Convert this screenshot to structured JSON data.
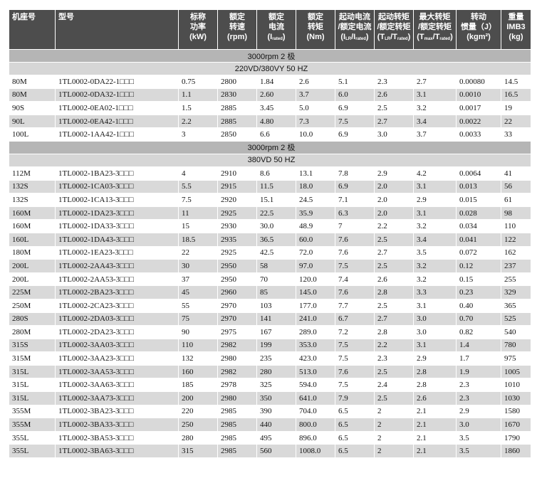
{
  "table": {
    "columns": [
      [
        [
          "机座号"
        ]
      ],
      [
        [
          "型号"
        ]
      ],
      [
        [
          "标称"
        ],
        [
          "功率"
        ],
        [
          "(kW)"
        ]
      ],
      [
        [
          "额定"
        ],
        [
          "转速"
        ],
        [
          "(rpm)"
        ]
      ],
      [
        [
          "额定"
        ],
        [
          "电流"
        ],
        [
          "(I",
          "rated",
          ")"
        ]
      ],
      [
        [
          "额定"
        ],
        [
          "转矩"
        ],
        [
          "(Nm)"
        ]
      ],
      [
        [
          "起动电流"
        ],
        [
          "/额定电流"
        ],
        [
          "(I",
          "LR",
          "/I",
          "rated",
          ")"
        ]
      ],
      [
        [
          "起动转矩"
        ],
        [
          "/额定转矩"
        ],
        [
          "(T",
          "LR",
          "/T",
          "rated",
          ")"
        ]
      ],
      [
        [
          "最大转矩"
        ],
        [
          "/额定转矩"
        ],
        [
          "(T",
          "max",
          "/T",
          "rated",
          ")"
        ]
      ],
      [
        [
          "转动"
        ],
        [
          "惯量（J）"
        ],
        [
          "(kgm²)"
        ]
      ],
      [
        [
          "重量"
        ],
        [
          "IMB3"
        ],
        [
          "(kg)"
        ]
      ]
    ],
    "sections": [
      {
        "titles": [
          "3000rpm 2 极",
          "220VD/380VY  50 HZ"
        ],
        "rows": [
          [
            "80M",
            "1TL0002-0DA22-1□□□",
            "0.75",
            "2800",
            "1.84",
            "2.6",
            "5.1",
            "2.3",
            "2.7",
            "0.00080",
            "14.5"
          ],
          [
            "80M",
            "1TL0002-0DA32-1□□□",
            "1.1",
            "2830",
            "2.60",
            "3.7",
            "6.0",
            "2.6",
            "3.1",
            "0.0010",
            "16.5"
          ],
          [
            "90S",
            "1TL0002-0EA02-1□□□",
            "1.5",
            "2885",
            "3.45",
            "5.0",
            "6.9",
            "2.5",
            "3.2",
            "0.0017",
            "19"
          ],
          [
            "90L",
            "1TL0002-0EA42-1□□□",
            "2.2",
            "2885",
            "4.80",
            "7.3",
            "7.5",
            "2.7",
            "3.4",
            "0.0022",
            "22"
          ],
          [
            "100L",
            "1TL0002-1AA42-1□□□",
            "3",
            "2850",
            "6.6",
            "10.0",
            "6.9",
            "3.0",
            "3.7",
            "0.0033",
            "33"
          ]
        ]
      },
      {
        "titles": [
          "3000rpm 2 极",
          "380VD  50 HZ"
        ],
        "rows": [
          [
            "112M",
            "1TL0002-1BA23-3□□□",
            "4",
            "2910",
            "8.6",
            "13.1",
            "7.8",
            "2.9",
            "4.2",
            "0.0064",
            "41"
          ],
          [
            "132S",
            "1TL0002-1CA03-3□□□",
            "5.5",
            "2915",
            "11.5",
            "18.0",
            "6.9",
            "2.0",
            "3.1",
            "0.013",
            "56"
          ],
          [
            "132S",
            "1TL0002-1CA13-3□□□",
            "7.5",
            "2920",
            "15.1",
            "24.5",
            "7.1",
            "2.0",
            "2.9",
            "0.015",
            "61"
          ],
          [
            "160M",
            "1TL0002-1DA23-3□□□",
            "11",
            "2925",
            "22.5",
            "35.9",
            "6.3",
            "2.0",
            "3.1",
            "0.028",
            "98"
          ],
          [
            "160M",
            "1TL0002-1DA33-3□□□",
            "15",
            "2930",
            "30.0",
            "48.9",
            "7",
            "2.2",
            "3.2",
            "0.034",
            "110"
          ],
          [
            "160L",
            "1TL0002-1DA43-3□□□",
            "18.5",
            "2935",
            "36.5",
            "60.0",
            "7.6",
            "2.5",
            "3.4",
            "0.041",
            "122"
          ],
          [
            "180M",
            "1TL0002-1EA23-3□□□",
            "22",
            "2925",
            "42.5",
            "72.0",
            "7.6",
            "2.7",
            "3.5",
            "0.072",
            "162"
          ],
          [
            "200L",
            "1TL0002-2AA43-3□□□",
            "30",
            "2950",
            "58",
            "97.0",
            "7.5",
            "2.5",
            "3.2",
            "0.12",
            "237"
          ],
          [
            "200L",
            "1TL0002-2AA53-3□□□",
            "37",
            "2950",
            "70",
            "120.0",
            "7.4",
            "2.6",
            "3.2",
            "0.15",
            "255"
          ],
          [
            "225M",
            "1TL0002-2BA23-3□□□",
            "45",
            "2960",
            "85",
            "145.0",
            "7.6",
            "2.8",
            "3.3",
            "0.23",
            "329"
          ],
          [
            "250M",
            "1TL0002-2CA23-3□□□",
            "55",
            "2970",
            "103",
            "177.0",
            "7.7",
            "2.5",
            "3.1",
            "0.40",
            "365"
          ],
          [
            "280S",
            "1TL0002-2DA03-3□□□",
            "75",
            "2970",
            "141",
            "241.0",
            "6.7",
            "2.7",
            "3.0",
            "0.70",
            "525"
          ],
          [
            "280M",
            "1TL0002-2DA23-3□□□",
            "90",
            "2975",
            "167",
            "289.0",
            "7.2",
            "2.8",
            "3.0",
            "0.82",
            "540"
          ],
          [
            "315S",
            "1TL0002-3AA03-3□□□",
            "110",
            "2982",
            "199",
            "353.0",
            "7.5",
            "2.2",
            "3.1",
            "1.4",
            "780"
          ],
          [
            "315M",
            "1TL0002-3AA23-3□□□",
            "132",
            "2980",
            "235",
            "423.0",
            "7.5",
            "2.3",
            "2.9",
            "1.7",
            "975"
          ],
          [
            "315L",
            "1TL0002-3AA53-3□□□",
            "160",
            "2982",
            "280",
            "513.0",
            "7.6",
            "2.5",
            "2.8",
            "1.9",
            "1005"
          ],
          [
            "315L",
            "1TL0002-3AA63-3□□□",
            "185",
            "2978",
            "325",
            "594.0",
            "7.5",
            "2.4",
            "2.8",
            "2.3",
            "1010"
          ],
          [
            "315L",
            "1TL0002-3AA73-3□□□",
            "200",
            "2980",
            "350",
            "641.0",
            "7.9",
            "2.5",
            "2.6",
            "2.3",
            "1030"
          ],
          [
            "355M",
            "1TL0002-3BA23-3□□□",
            "220",
            "2985",
            "390",
            "704.0",
            "6.5",
            "2",
            "2.1",
            "2.9",
            "1580"
          ],
          [
            "355M",
            "1TL0002-3BA33-3□□□",
            "250",
            "2985",
            "440",
            "800.0",
            "6.5",
            "2",
            "2.1",
            "3.0",
            "1670"
          ],
          [
            "355L",
            "1TL0002-3BA53-3□□□",
            "280",
            "2985",
            "495",
            "896.0",
            "6.5",
            "2",
            "2.1",
            "3.5",
            "1790"
          ],
          [
            "355L",
            "1TL0002-3BA63-3□□□",
            "315",
            "2985",
            "560",
            "1008.0",
            "6.5",
            "2",
            "2.1",
            "3.5",
            "1860"
          ]
        ]
      }
    ]
  }
}
